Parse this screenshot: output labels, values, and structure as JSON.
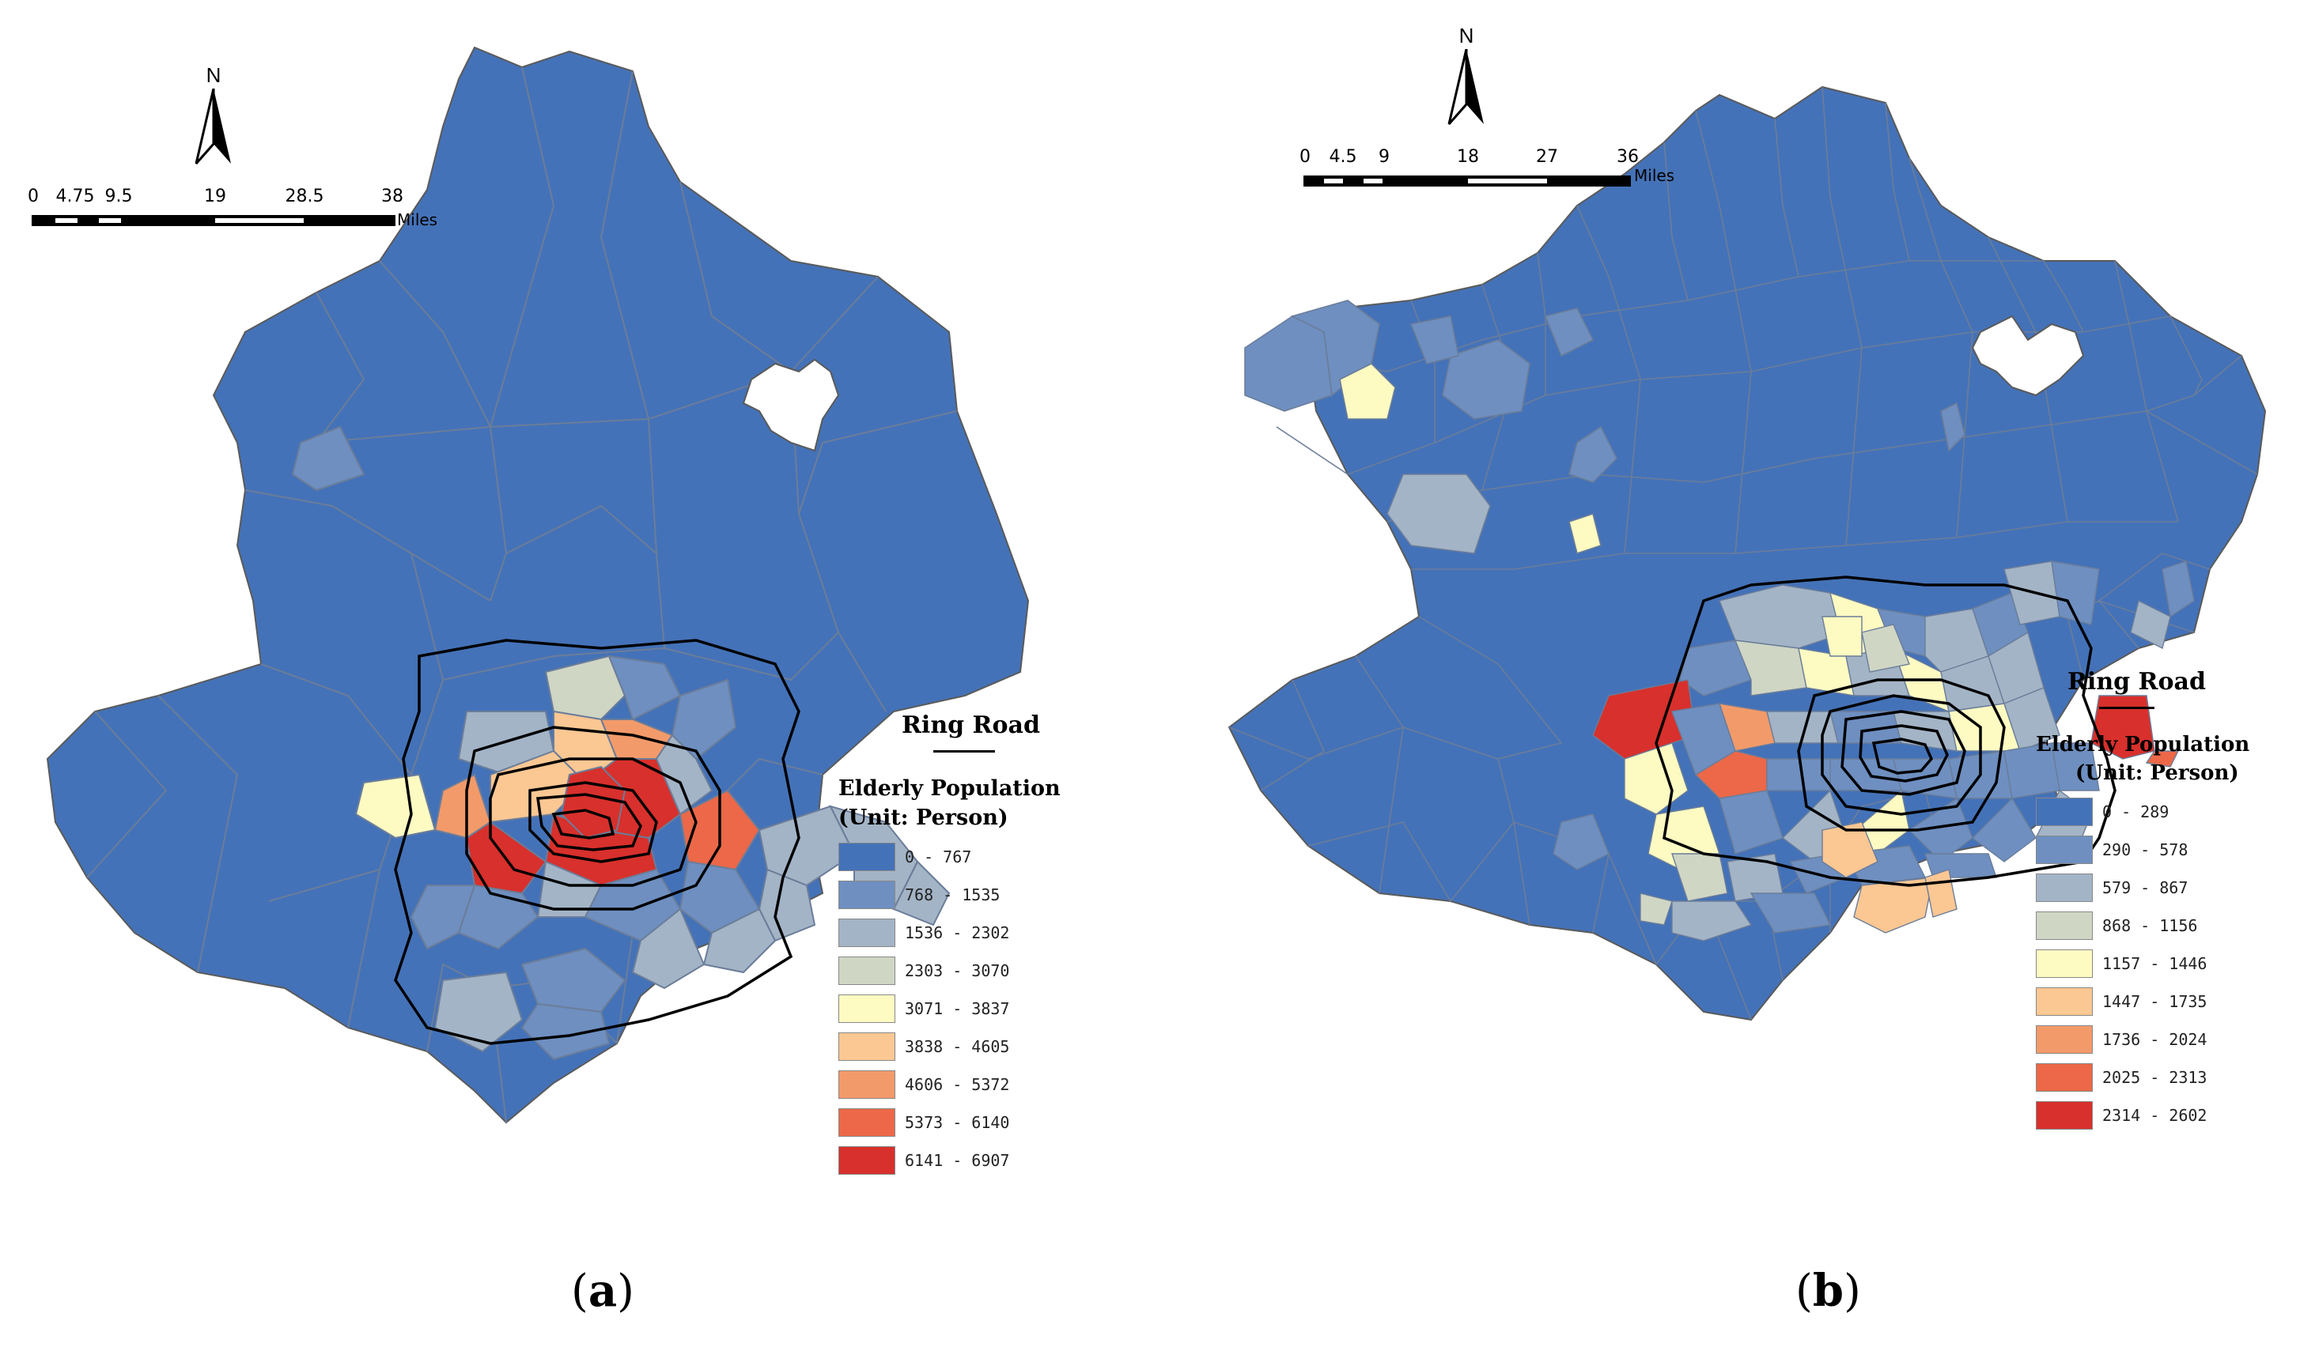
{
  "panels": {
    "a": {
      "caption": {
        "open": "(",
        "letter": "a",
        "close": ")"
      },
      "north_label": "N",
      "scale": {
        "ticks": [
          "0",
          "4.75",
          "9.5",
          "19",
          "28.5",
          "38"
        ],
        "unit": "Miles"
      },
      "legend": {
        "ring_road_label": "Ring Road",
        "title": "Elderly Population",
        "unit": "(Unit: Person)",
        "classes": [
          {
            "range": "0 - 767",
            "color": "#4472b8"
          },
          {
            "range": "768 - 1535",
            "color": "#6e8fc0"
          },
          {
            "range": "1536 - 2302",
            "color": "#a3b4c6"
          },
          {
            "range": "2303 - 3070",
            "color": "#d0d6c4"
          },
          {
            "range": "3071 - 3837",
            "color": "#fdfbc2"
          },
          {
            "range": "3838 - 4605",
            "color": "#fbc793"
          },
          {
            "range": "4606 - 5372",
            "color": "#f39a6a"
          },
          {
            "range": "5373 - 6140",
            "color": "#ec6848"
          },
          {
            "range": "6141 - 6907",
            "color": "#d8302c"
          }
        ]
      }
    },
    "b": {
      "caption": {
        "open": "(",
        "letter": "b",
        "close": ")"
      },
      "north_label": "N",
      "scale": {
        "ticks": [
          "0",
          "4.5",
          "9",
          "18",
          "27",
          "36"
        ],
        "unit": "Miles"
      },
      "legend": {
        "ring_road_label": "Ring Road",
        "title": "Elderly Population",
        "unit": "(Unit: Person)",
        "classes": [
          {
            "range": "0 - 289",
            "color": "#4472b8"
          },
          {
            "range": "290 - 578",
            "color": "#6e8fc0"
          },
          {
            "range": "579 - 867",
            "color": "#a3b4c6"
          },
          {
            "range": "868 - 1156",
            "color": "#d0d6c4"
          },
          {
            "range": "1157 - 1446",
            "color": "#fdfbc2"
          },
          {
            "range": "1447 - 1735",
            "color": "#fbc793"
          },
          {
            "range": "1736 - 2024",
            "color": "#f39a6a"
          },
          {
            "range": "2025 - 2313",
            "color": "#ec6848"
          },
          {
            "range": "2314 - 2602",
            "color": "#d8302c"
          }
        ]
      }
    }
  }
}
